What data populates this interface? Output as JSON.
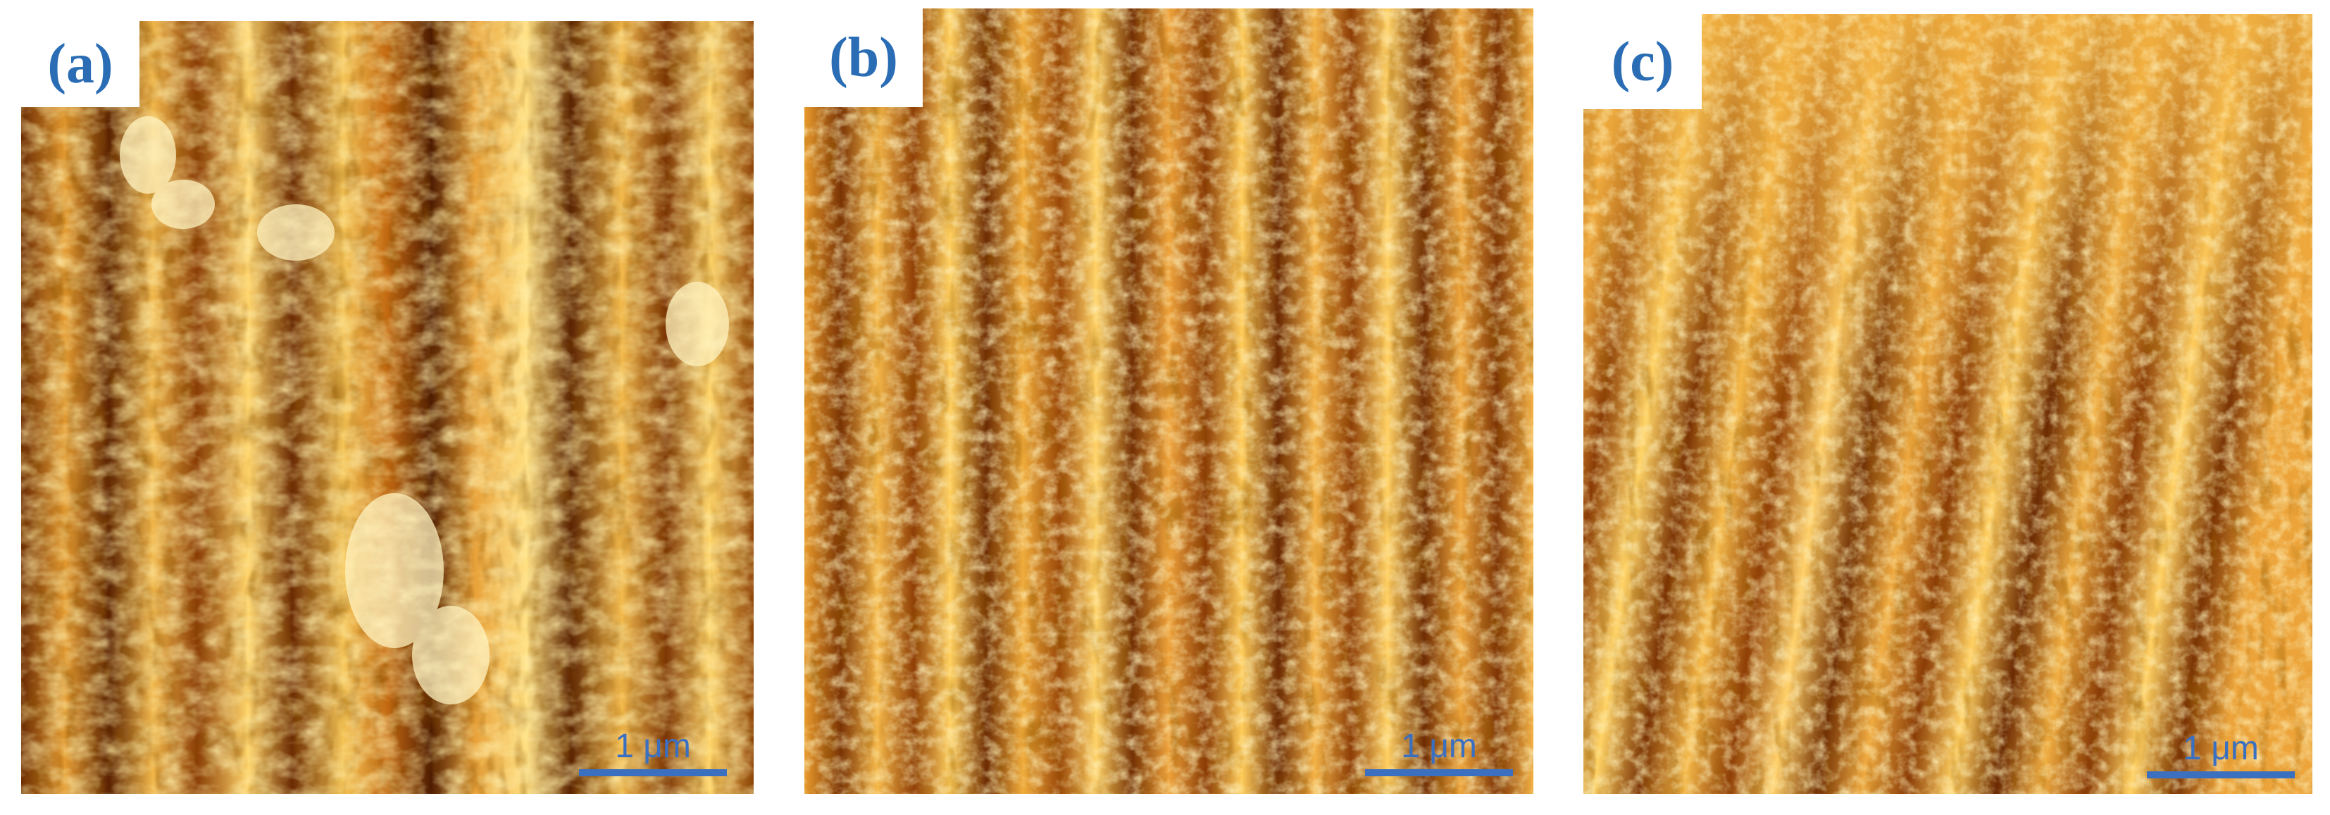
{
  "figure": {
    "panels": [
      {
        "label": "(a)",
        "scale_bar": "1 μm",
        "brightness": "high",
        "streak_strength": "medium"
      },
      {
        "label": "(b)",
        "scale_bar": "1 μm",
        "brightness": "medium",
        "streak_strength": "high"
      },
      {
        "label": "(c)",
        "scale_bar": "1 μm",
        "brightness": "medium",
        "streak_strength": "high"
      }
    ],
    "colors": {
      "dark": "#4a1d02",
      "mid": "#c96a10",
      "light": "#ffd96a",
      "highlight": "#fff6c8",
      "label": "#2a6db5",
      "scale_bar": "#3b6fbf"
    }
  }
}
